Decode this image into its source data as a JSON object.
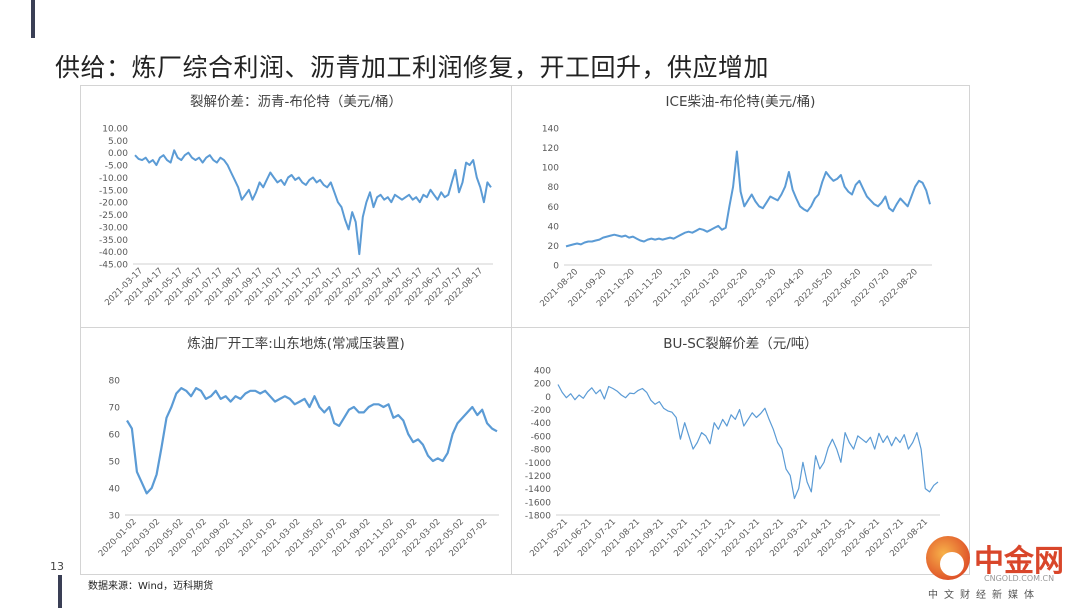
{
  "slide": {
    "title": "供给：炼厂综合利润、沥青加工利润修复，开工回升，供应增加",
    "page_number": "13",
    "source": "数据来源：Wind，迈科期货",
    "watermark": {
      "name": "中金网",
      "url": "CNGOLD.COM.CN",
      "subtitle": "中文财经新媒体"
    }
  },
  "colors": {
    "line": "#5b9bd5",
    "accent_bar": "#3a3f55",
    "grid": "#e6e6e6",
    "axis_text": "#595959"
  },
  "chart_data": [
    {
      "type": "line",
      "title": "裂解价差：沥青-布伦特（美元/桶）",
      "ylim": [
        -45,
        10
      ],
      "yticks": [
        "10.00",
        "5.00",
        "0.00",
        "-5.00",
        "-10.00",
        "-15.00",
        "-20.00",
        "-25.00",
        "-30.00",
        "-35.00",
        "-40.00",
        "-45.00"
      ],
      "xticks": [
        "2021-03-17",
        "2021-04-17",
        "2021-05-17",
        "2021-06-17",
        "2021-07-17",
        "2021-08-17",
        "2021-09-17",
        "2021-10-17",
        "2021-11-17",
        "2021-12-17",
        "2022-01-17",
        "2022-02-17",
        "2022-03-17",
        "2022-04-17",
        "2022-05-17",
        "2022-06-17",
        "2022-07-17",
        "2022-08-17"
      ],
      "series": [
        {
          "values": [
            -1,
            -2.5,
            -3,
            -2,
            -4,
            -3,
            -5,
            -2,
            -1,
            -3,
            -4,
            1,
            -2,
            -3,
            -1,
            0,
            -2,
            -3,
            -2,
            -4,
            -2,
            -1,
            -3,
            -4,
            -2,
            -3,
            -5,
            -8,
            -11,
            -14,
            -19,
            -17,
            -15,
            -19,
            -16,
            -12,
            -14,
            -11,
            -8,
            -10,
            -12,
            -11,
            -13,
            -10,
            -9,
            -11,
            -10,
            -12,
            -13,
            -11,
            -10,
            -12,
            -11,
            -13,
            -14,
            -12,
            -16,
            -20,
            -22,
            -27,
            -31,
            -24,
            -28,
            -41,
            -26,
            -20,
            -16,
            -22,
            -18,
            -17,
            -19,
            -18,
            -20,
            -17,
            -18,
            -19,
            -18,
            -17,
            -19,
            -18,
            -20,
            -17,
            -18,
            -15,
            -17,
            -19,
            -16,
            -18,
            -17,
            -12,
            -7,
            -16,
            -12,
            -4,
            -5,
            -3,
            -10,
            -14,
            -20,
            -12,
            -14
          ]
        }
      ]
    },
    {
      "type": "line",
      "title": "ICE柴油-布伦特(美元/桶)",
      "ylim": [
        0,
        140
      ],
      "yticks": [
        "140",
        "120",
        "100",
        "80",
        "60",
        "40",
        "20",
        "0"
      ],
      "xticks": [
        "2021-08-20",
        "2021-09-20",
        "2021-10-20",
        "2021-11-20",
        "2021-12-20",
        "2022-01-20",
        "2022-02-20",
        "2022-03-20",
        "2022-04-20",
        "2022-05-20",
        "2022-06-20",
        "2022-07-20",
        "2022-08-20"
      ],
      "series": [
        {
          "values": [
            19,
            20,
            21,
            22,
            21,
            23,
            24,
            24,
            25,
            26,
            28,
            29,
            30,
            31,
            30,
            29,
            30,
            28,
            29,
            27,
            25,
            24,
            26,
            27,
            26,
            27,
            26,
            27,
            28,
            27,
            29,
            31,
            33,
            34,
            33,
            35,
            37,
            36,
            34,
            36,
            38,
            40,
            36,
            38,
            60,
            80,
            116,
            75,
            60,
            66,
            72,
            65,
            60,
            58,
            64,
            70,
            68,
            66,
            72,
            80,
            95,
            77,
            68,
            60,
            57,
            55,
            60,
            68,
            72,
            85,
            95,
            90,
            86,
            88,
            92,
            80,
            75,
            72,
            82,
            86,
            78,
            70,
            66,
            62,
            60,
            64,
            70,
            58,
            55,
            62,
            68,
            64,
            60,
            70,
            80,
            86,
            84,
            76,
            62
          ]
        }
      ]
    },
    {
      "type": "line",
      "title": "炼油厂开工率:山东地炼(常减压装置)",
      "ylim": [
        30,
        80
      ],
      "yticks": [
        "80",
        "70",
        "60",
        "50",
        "40",
        "30"
      ],
      "xticks": [
        "2020-01-02",
        "2020-03-02",
        "2020-05-02",
        "2020-07-02",
        "2020-09-02",
        "2020-11-02",
        "2021-01-02",
        "2021-03-02",
        "2021-05-02",
        "2021-07-02",
        "2021-09-02",
        "2021-11-02",
        "2022-01-02",
        "2022-03-02",
        "2022-05-02",
        "2022-07-02"
      ],
      "series": [
        {
          "values": [
            65,
            62,
            46,
            42,
            38,
            40,
            45,
            55,
            66,
            70,
            75,
            77,
            76,
            74,
            77,
            76,
            73,
            74,
            76,
            73,
            74,
            72,
            74,
            73,
            75,
            76,
            76,
            75,
            76,
            74,
            72,
            73,
            74,
            73,
            71,
            72,
            73,
            70,
            74,
            70,
            68,
            70,
            64,
            63,
            66,
            69,
            70,
            68,
            68,
            70,
            71,
            71,
            70,
            71,
            66,
            67,
            65,
            60,
            57,
            58,
            56,
            52,
            50,
            51,
            50,
            53,
            60,
            64,
            66,
            68,
            70,
            67,
            69,
            64,
            62,
            61
          ]
        }
      ]
    },
    {
      "type": "line",
      "title": "BU-SC裂解价差（元/吨）",
      "ylim": [
        -1800,
        400
      ],
      "yticks": [
        "400",
        "200",
        "0",
        "-200",
        "-400",
        "-600",
        "-800",
        "-1000",
        "-1200",
        "-1400",
        "-1600",
        "-1800"
      ],
      "xticks": [
        "2021-05-21",
        "2021-06-21",
        "2021-07-21",
        "2021-08-21",
        "2021-09-21",
        "2021-10-21",
        "2021-11-21",
        "2021-12-21",
        "2022-01-21",
        "2022-02-21",
        "2022-03-21",
        "2022-04-21",
        "2022-05-21",
        "2022-06-21",
        "2022-07-21",
        "2022-08-21"
      ],
      "series": [
        {
          "values": [
            180,
            60,
            -20,
            40,
            -50,
            20,
            -30,
            70,
            130,
            40,
            100,
            -40,
            150,
            120,
            80,
            20,
            -20,
            50,
            40,
            90,
            120,
            60,
            -60,
            -120,
            -80,
            -180,
            -220,
            -240,
            -320,
            -650,
            -400,
            -600,
            -800,
            -700,
            -550,
            -600,
            -720,
            -400,
            -500,
            -350,
            -450,
            -280,
            -350,
            -200,
            -450,
            -350,
            -250,
            -320,
            -260,
            -180,
            -350,
            -500,
            -700,
            -800,
            -1100,
            -1200,
            -1550,
            -1400,
            -1000,
            -1300,
            -1450,
            -900,
            -1100,
            -1000,
            -780,
            -650,
            -800,
            -1000,
            -550,
            -700,
            -800,
            -600,
            -650,
            -700,
            -620,
            -800,
            -560,
            -700,
            -600,
            -750,
            -620,
            -700,
            -580,
            -800,
            -700,
            -550,
            -800,
            -1400,
            -1450,
            -1350,
            -1300
          ]
        }
      ]
    }
  ]
}
